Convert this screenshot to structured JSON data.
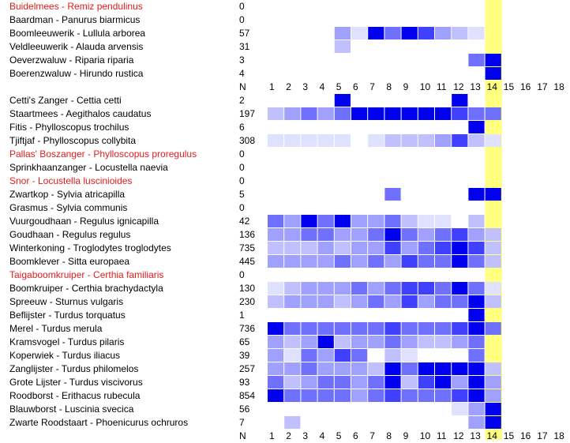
{
  "colors": {
    "highlight": "#ffff80",
    "scale": [
      "#ffffff",
      "#e0e0ff",
      "#c0c0ff",
      "#a0a0ff",
      "#7070ff",
      "#4040ff",
      "#0000ee"
    ],
    "red_label": "#e31b1b"
  },
  "axis": {
    "n_label": "N",
    "numbers": [
      "1",
      "2",
      "3",
      "4",
      "5",
      "6",
      "7",
      "8",
      "9",
      "10",
      "11",
      "12",
      "13",
      "14",
      "15",
      "16",
      "17",
      "18"
    ],
    "highlight_column": 14
  },
  "chart_data": {
    "type": "heatmap",
    "x": [
      1,
      2,
      3,
      4,
      5,
      6,
      7,
      8,
      9,
      10,
      11,
      12,
      13,
      14,
      15,
      16,
      17,
      18
    ],
    "highlight_x": 14,
    "intensity_scale": [
      0,
      6
    ],
    "groups": [
      {
        "rows": [
          {
            "label": "Buidelmees - Remiz pendulinus",
            "red": true,
            "n": "0",
            "cells": [
              0,
              0,
              0,
              0,
              0,
              0,
              0,
              0,
              0,
              0,
              0,
              0,
              0,
              0,
              0,
              0,
              0,
              0
            ]
          },
          {
            "label": "Baardman - Panurus biarmicus",
            "red": false,
            "n": "0",
            "cells": [
              0,
              0,
              0,
              0,
              0,
              0,
              0,
              0,
              0,
              0,
              0,
              0,
              0,
              0,
              0,
              0,
              0,
              0
            ]
          },
          {
            "label": "Boomleeuwerik - Lullula arborea",
            "red": false,
            "n": "57",
            "cells": [
              0,
              0,
              0,
              0,
              3,
              1,
              6,
              4,
              6,
              5,
              3,
              2,
              1,
              0,
              0,
              0,
              0,
              0
            ]
          },
          {
            "label": "Veldleeuwerik - Alauda arvensis",
            "red": false,
            "n": "31",
            "cells": [
              0,
              0,
              0,
              0,
              2,
              0,
              0,
              0,
              0,
              0,
              0,
              0,
              0,
              0,
              0,
              0,
              0,
              0
            ]
          },
          {
            "label": "Oeverzwaluw - Riparia riparia",
            "red": false,
            "n": "3",
            "cells": [
              0,
              0,
              0,
              0,
              0,
              0,
              0,
              0,
              0,
              0,
              0,
              0,
              4,
              6,
              0,
              0,
              0,
              0
            ]
          },
          {
            "label": "Boerenzwaluw - Hirundo rustica",
            "red": false,
            "n": "4",
            "cells": [
              0,
              0,
              0,
              0,
              0,
              0,
              0,
              0,
              0,
              0,
              0,
              0,
              0,
              6,
              0,
              0,
              0,
              0
            ]
          }
        ]
      },
      {
        "rows": [
          {
            "label": "Cetti's Zanger - Cettia cetti",
            "red": false,
            "n": "2",
            "cells": [
              0,
              0,
              0,
              0,
              6,
              0,
              0,
              0,
              0,
              0,
              0,
              6,
              0,
              0,
              0,
              0,
              0,
              0
            ]
          },
          {
            "label": "Staartmees - Aegithalos caudatus",
            "red": false,
            "n": "197",
            "cells": [
              2,
              3,
              4,
              3,
              4,
              6,
              6,
              6,
              6,
              6,
              6,
              5,
              4,
              4,
              0,
              0,
              0,
              0
            ]
          },
          {
            "label": "Fitis - Phylloscopus trochilus",
            "red": false,
            "n": "6",
            "cells": [
              0,
              0,
              0,
              0,
              0,
              0,
              0,
              0,
              0,
              0,
              0,
              0,
              6,
              0,
              0,
              0,
              0,
              0
            ]
          },
          {
            "label": "Tjiftjaf - Phylloscopus collybita",
            "red": false,
            "n": "308",
            "cells": [
              1,
              1,
              1,
              1,
              1,
              0,
              1,
              2,
              2,
              2,
              3,
              5,
              2,
              1,
              0,
              0,
              0,
              0
            ]
          },
          {
            "label": "Pallas' Boszanger - Phylloscopus proregulus",
            "red": true,
            "n": "0",
            "cells": [
              0,
              0,
              0,
              0,
              0,
              0,
              0,
              0,
              0,
              0,
              0,
              0,
              0,
              0,
              0,
              0,
              0,
              0
            ]
          },
          {
            "label": "Sprinkhaanzanger - Locustella naevia",
            "red": false,
            "n": "0",
            "cells": [
              0,
              0,
              0,
              0,
              0,
              0,
              0,
              0,
              0,
              0,
              0,
              0,
              0,
              0,
              0,
              0,
              0,
              0
            ]
          },
          {
            "label": "Snor - Locustella luscinioides",
            "red": true,
            "n": "0",
            "cells": [
              0,
              0,
              0,
              0,
              0,
              0,
              0,
              0,
              0,
              0,
              0,
              0,
              0,
              0,
              0,
              0,
              0,
              0
            ]
          },
          {
            "label": "Zwartkop - Sylvia atricapilla",
            "red": false,
            "n": "5",
            "cells": [
              0,
              0,
              0,
              0,
              0,
              0,
              0,
              4,
              0,
              0,
              0,
              0,
              6,
              6,
              0,
              0,
              0,
              0
            ]
          },
          {
            "label": "Grasmus - Sylvia communis",
            "red": false,
            "n": "0",
            "cells": [
              0,
              0,
              0,
              0,
              0,
              0,
              0,
              0,
              0,
              0,
              0,
              0,
              0,
              0,
              0,
              0,
              0,
              0
            ]
          },
          {
            "label": "Vuurgoudhaan - Regulus ignicapilla",
            "red": false,
            "n": "42",
            "cells": [
              4,
              3,
              6,
              4,
              6,
              3,
              3,
              4,
              2,
              1,
              1,
              0,
              2,
              0,
              0,
              0,
              0,
              0
            ]
          },
          {
            "label": "Goudhaan - Regulus regulus",
            "red": false,
            "n": "136",
            "cells": [
              3,
              3,
              4,
              4,
              3,
              3,
              4,
              6,
              4,
              3,
              4,
              5,
              3,
              2,
              0,
              0,
              0,
              0
            ]
          },
          {
            "label": "Winterkoning - Troglodytes troglodytes",
            "red": false,
            "n": "735",
            "cells": [
              2,
              2,
              2,
              3,
              2,
              3,
              3,
              5,
              3,
              4,
              5,
              6,
              5,
              2,
              0,
              0,
              0,
              0
            ]
          },
          {
            "label": "Boomklever - Sitta europaea",
            "red": false,
            "n": "445",
            "cells": [
              3,
              3,
              3,
              3,
              4,
              3,
              4,
              3,
              5,
              4,
              4,
              6,
              4,
              2,
              0,
              0,
              0,
              0
            ]
          },
          {
            "label": "Taigaboomkruiper - Certhia familiaris",
            "red": true,
            "n": "0",
            "cells": [
              0,
              0,
              0,
              0,
              0,
              0,
              0,
              0,
              0,
              0,
              0,
              0,
              0,
              0,
              0,
              0,
              0,
              0
            ]
          },
          {
            "label": "Boomkruiper - Certhia brachydactyla",
            "red": false,
            "n": "130",
            "cells": [
              1,
              2,
              3,
              3,
              3,
              4,
              3,
              4,
              5,
              5,
              4,
              6,
              4,
              1,
              0,
              0,
              0,
              0
            ]
          },
          {
            "label": "Spreeuw - Sturnus vulgaris",
            "red": false,
            "n": "230",
            "cells": [
              2,
              3,
              3,
              3,
              2,
              3,
              4,
              3,
              5,
              3,
              4,
              4,
              6,
              2,
              0,
              0,
              0,
              0
            ]
          },
          {
            "label": "Beflijster - Turdus torquatus",
            "red": false,
            "n": "1",
            "cells": [
              0,
              0,
              0,
              0,
              0,
              0,
              0,
              0,
              0,
              0,
              0,
              0,
              6,
              0,
              0,
              0,
              0,
              0
            ]
          },
          {
            "label": "Merel - Turdus merula",
            "red": false,
            "n": "736",
            "cells": [
              6,
              4,
              4,
              4,
              4,
              4,
              4,
              5,
              4,
              4,
              4,
              5,
              6,
              4,
              0,
              0,
              0,
              0
            ]
          },
          {
            "label": "Kramsvogel - Turdus pilaris",
            "red": false,
            "n": "65",
            "cells": [
              3,
              2,
              3,
              6,
              2,
              3,
              3,
              4,
              3,
              2,
              2,
              3,
              4,
              0,
              0,
              0,
              0,
              0
            ]
          },
          {
            "label": "Koperwiek - Turdus iliacus",
            "red": false,
            "n": "39",
            "cells": [
              3,
              1,
              4,
              3,
              5,
              4,
              0,
              2,
              1,
              0,
              0,
              0,
              4,
              0,
              0,
              0,
              0,
              0
            ]
          },
          {
            "label": "Zanglijster - Turdus philomelos",
            "red": false,
            "n": "257",
            "cells": [
              3,
              3,
              4,
              3,
              3,
              3,
              2,
              6,
              4,
              6,
              6,
              6,
              6,
              2,
              0,
              0,
              0,
              0
            ]
          },
          {
            "label": "Grote Lijster - Turdus viscivorus",
            "red": false,
            "n": "93",
            "cells": [
              4,
              2,
              3,
              4,
              4,
              3,
              4,
              6,
              2,
              5,
              6,
              3,
              6,
              3,
              0,
              0,
              0,
              0
            ]
          },
          {
            "label": "Roodborst - Erithacus rubecula",
            "red": false,
            "n": "854",
            "cells": [
              6,
              4,
              4,
              4,
              4,
              3,
              4,
              5,
              4,
              4,
              4,
              5,
              6,
              3,
              0,
              0,
              0,
              0
            ]
          },
          {
            "label": "Blauwborst - Luscinia svecica",
            "red": false,
            "n": "56",
            "cells": [
              0,
              0,
              0,
              0,
              0,
              0,
              0,
              0,
              0,
              0,
              0,
              1,
              3,
              6,
              0,
              0,
              0,
              0
            ]
          },
          {
            "label": "Zwarte Roodstaart - Phoenicurus ochruros",
            "red": false,
            "n": "7",
            "cells": [
              0,
              2,
              0,
              0,
              0,
              0,
              0,
              0,
              0,
              0,
              0,
              0,
              3,
              6,
              0,
              0,
              0,
              0
            ]
          }
        ]
      }
    ]
  }
}
